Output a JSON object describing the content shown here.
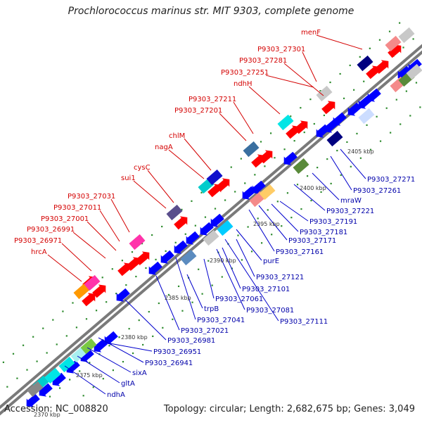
{
  "header": {
    "title": "Prochlorococcus marinus str. MIT 9303, complete genome"
  },
  "footer": {
    "accession": "Accession: NC_008820",
    "summary": "Topology: circular; Length: 2,682,675 bp; Genes: 3,049"
  },
  "colors": {
    "backbone": "#8e8e8e",
    "forward_label": "#d40000",
    "reverse_label": "#0000aa",
    "forward_gene": "#ff0000",
    "reverse_gene": "#0000ff",
    "leader_line_forward": "#d40000",
    "leader_line_reverse": "#0000cc",
    "dot": "#2e8b2e"
  },
  "ticks": [
    "2370 kbp",
    "2375 kbp",
    "2380 kbp",
    "2385 kbp",
    "2390 kbp",
    "2395 kbp",
    "2400 kbp",
    "2405 kbp"
  ],
  "forward_genes": [
    "hrcA",
    "P9303_26971",
    "P9303_26991",
    "P9303_27001",
    "P9303_27011",
    "P9303_27031",
    "sui1",
    "cysC",
    "nagA",
    "chlM",
    "P9303_27201",
    "P9303_27211",
    "ndhH",
    "P9303_27251",
    "P9303_27281",
    "P9303_27301",
    "menF"
  ],
  "reverse_genes": [
    "ndhA",
    "gltA",
    "sixA",
    "P9303_26941",
    "P9303_26951",
    "P9303_26981",
    "P9303_27021",
    "P9303_27041",
    "trpB",
    "P9303_27061",
    "P9303_27081",
    "P9303_27111",
    "P9303_27101",
    "P9303_27121",
    "purE",
    "P9303_27161",
    "P9303_27171",
    "P9303_27181",
    "P9303_27191",
    "P9303_27221",
    "mraW",
    "P9303_27261",
    "P9303_27271"
  ]
}
